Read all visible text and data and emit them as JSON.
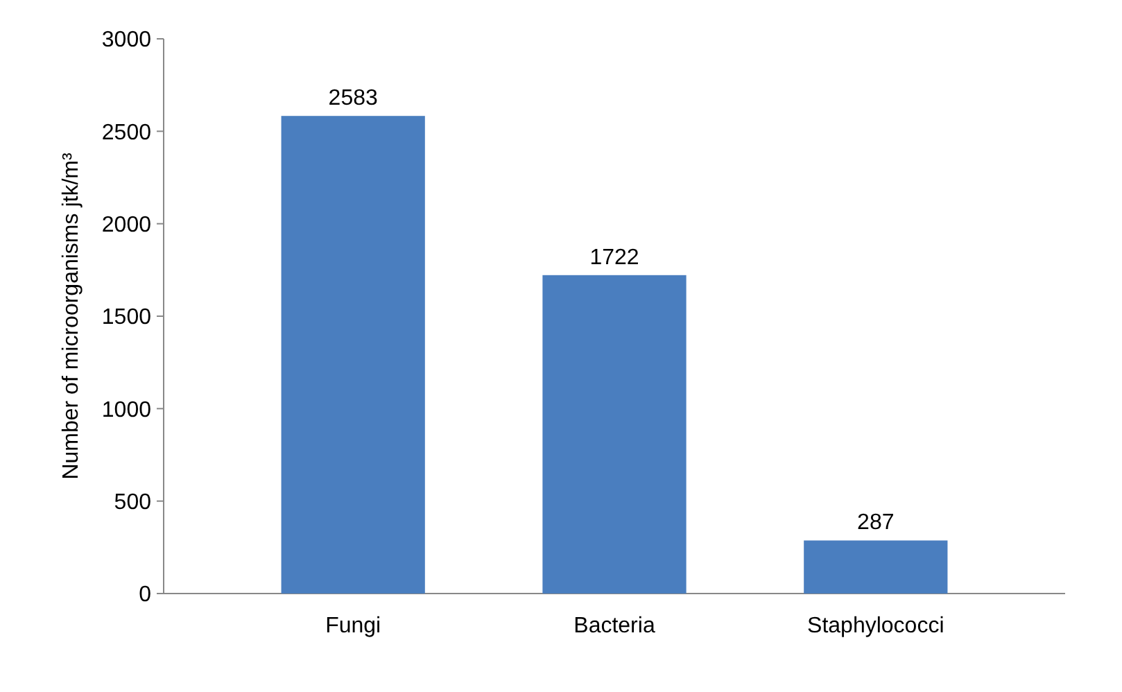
{
  "chart_data": {
    "type": "bar",
    "ylabel": "Number of microorganisms jtk/m³",
    "categories": [
      "Fungi",
      "Bacteria",
      "Staphylococci"
    ],
    "values": [
      2583,
      1722,
      287
    ],
    "color": "#4a7ebf",
    "ylim": [
      0,
      3000
    ],
    "yticks": [
      0,
      500,
      1000,
      1500,
      2000,
      2500,
      3000
    ],
    "data_labels": true
  }
}
